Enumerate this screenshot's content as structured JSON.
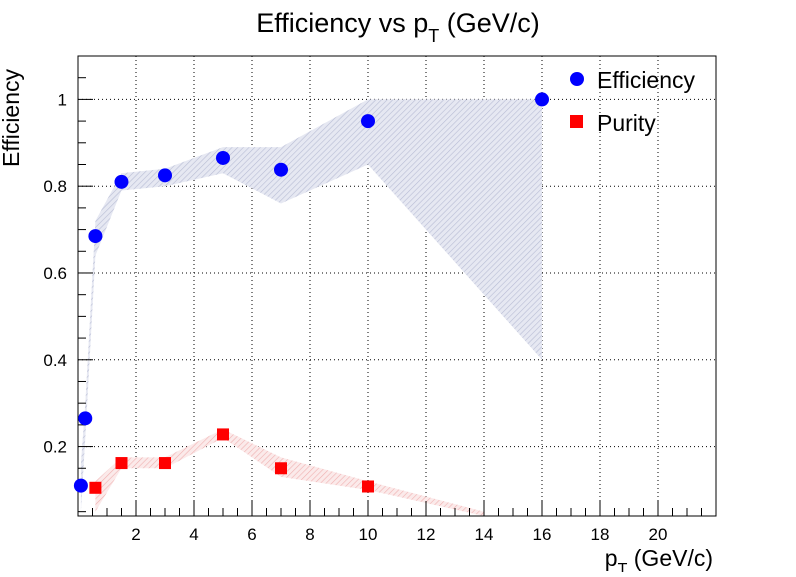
{
  "title_main": "Efficiency vs p",
  "title_sub": "T",
  "title_unit": " (GeV/c)",
  "xlabel_main": "p",
  "xlabel_sub": "T",
  "xlabel_unit": " (GeV/c)",
  "ylabel": "Efficiency",
  "colors": {
    "efficiency": "#0000ff",
    "purity": "#ff0000",
    "efficiency_band": "#d8dae8",
    "purity_band": "#f5cccc",
    "grid": "#000000"
  },
  "chart_data": {
    "type": "scatter",
    "xlim": [
      0,
      22
    ],
    "ylim": [
      0.04,
      1.1
    ],
    "grid": true,
    "legend_position": "top-right",
    "xticks": [
      2,
      4,
      6,
      8,
      10,
      12,
      14,
      16,
      18,
      20
    ],
    "yticks": [
      0.2,
      0.4,
      0.6,
      0.8,
      1
    ],
    "xtick_labels": [
      "2",
      "4",
      "6",
      "8",
      "10",
      "12",
      "14",
      "16",
      "18",
      "20"
    ],
    "ytick_labels": [
      "0.2",
      "0.4",
      "0.6",
      "0.8",
      "1"
    ],
    "series": [
      {
        "name": "Efficiency",
        "marker": "circle",
        "x": [
          0.1,
          0.25,
          0.6,
          1.5,
          3,
          5,
          7,
          10,
          16
        ],
        "y": [
          0.11,
          0.265,
          0.685,
          0.81,
          0.825,
          0.865,
          0.838,
          0.95,
          1.0
        ],
        "band_low": [
          0.05,
          0.22,
          0.64,
          0.79,
          0.8,
          0.83,
          0.76,
          0.85,
          0.4
        ],
        "band_high": [
          0.16,
          0.3,
          0.72,
          0.83,
          0.84,
          0.89,
          0.89,
          1.0,
          1.0
        ]
      },
      {
        "name": "Purity",
        "marker": "square",
        "x": [
          0.6,
          1.5,
          3,
          5,
          7,
          10
        ],
        "y": [
          0.105,
          0.162,
          0.162,
          0.228,
          0.15,
          0.108
        ],
        "band_low": [
          0.05,
          0.15,
          0.15,
          0.22,
          0.13,
          0.1,
          0.04
        ],
        "band_high": [
          0.12,
          0.175,
          0.175,
          0.24,
          0.175,
          0.12,
          0.05
        ],
        "band_x": [
          0.6,
          1.5,
          3,
          5,
          7,
          10,
          14
        ]
      }
    ]
  }
}
